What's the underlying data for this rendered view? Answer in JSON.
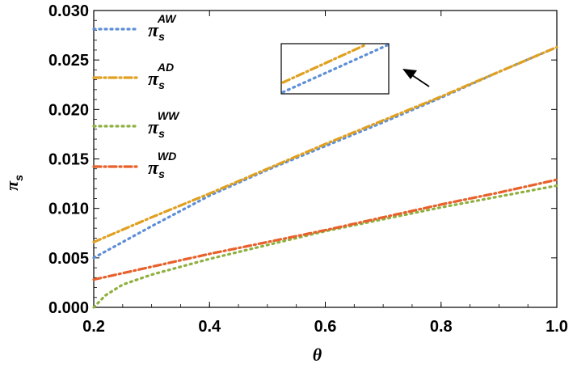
{
  "chart_data": {
    "type": "line",
    "title": "",
    "xlabel": "θ",
    "ylabel": "π",
    "ylabel_sub": "s",
    "xlim": [
      0.2,
      1.0
    ],
    "ylim": [
      0.0,
      0.03
    ],
    "x_ticks": [
      0.2,
      0.4,
      0.6,
      0.8,
      1.0
    ],
    "x_tick_labels": [
      "0.2",
      "0.4",
      "0.6",
      "0.8",
      "1.0"
    ],
    "y_ticks": [
      0.0,
      0.005,
      0.01,
      0.015,
      0.02,
      0.025,
      0.03
    ],
    "y_tick_labels": [
      "0.000",
      "0.005",
      "0.010",
      "0.015",
      "0.020",
      "0.025",
      "0.030"
    ],
    "legend_position": "top-left",
    "series": [
      {
        "name": "π_s^AW",
        "symbol": "π",
        "sub": "s",
        "sup": "AW",
        "color": "#5e8fd6",
        "dash": "dot",
        "x": [
          0.2,
          0.3,
          0.4,
          0.5,
          0.6,
          0.7,
          0.8,
          0.9,
          1.0
        ],
        "y": [
          0.005,
          0.0082,
          0.0113,
          0.0139,
          0.0163,
          0.0187,
          0.0212,
          0.0238,
          0.0263
        ]
      },
      {
        "name": "π_s^AD",
        "symbol": "π",
        "sub": "s",
        "sup": "AD",
        "color": "#e0a020",
        "dash": "dashdot",
        "x": [
          0.2,
          0.3,
          0.4,
          0.5,
          0.6,
          0.7,
          0.8,
          0.9,
          1.0
        ],
        "y": [
          0.0066,
          0.0091,
          0.0115,
          0.014,
          0.0165,
          0.0189,
          0.0213,
          0.0238,
          0.0263
        ]
      },
      {
        "name": "π_s^WW",
        "symbol": "π",
        "sub": "s",
        "sup": "WW",
        "color": "#8fb040",
        "dash": "dot",
        "x": [
          0.2,
          0.22,
          0.25,
          0.3,
          0.4,
          0.5,
          0.6,
          0.7,
          0.8,
          0.9,
          1.0
        ],
        "y": [
          0.0,
          0.0012,
          0.0023,
          0.0033,
          0.0049,
          0.0063,
          0.0077,
          0.0089,
          0.0101,
          0.0112,
          0.0123
        ]
      },
      {
        "name": "π_s^WD",
        "symbol": "π",
        "sub": "s",
        "sup": "WD",
        "color": "#e8602a",
        "dash": "dashdot",
        "x": [
          0.2,
          0.3,
          0.4,
          0.5,
          0.6,
          0.7,
          0.8,
          0.9,
          1.0
        ],
        "y": [
          0.0028,
          0.0041,
          0.0054,
          0.0066,
          0.0078,
          0.0091,
          0.0104,
          0.0116,
          0.0129
        ]
      }
    ],
    "inset": {
      "description": "zoom of AW and AD lines",
      "arrow_direction": "pointing up-left toward inset"
    }
  }
}
